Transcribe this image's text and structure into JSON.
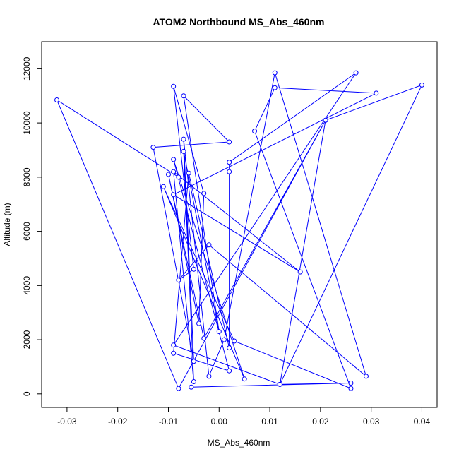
{
  "chart_data": {
    "type": "line",
    "title": "ATOM2 Northbound MS_Abs_460nm",
    "xlabel": "MS_Abs_460nm",
    "ylabel": "Altitude (m)",
    "xlim": [
      -0.035,
      0.043
    ],
    "ylim": [
      -500,
      13000
    ],
    "xticks": [
      -0.03,
      -0.02,
      -0.01,
      0.0,
      0.01,
      0.02,
      0.03,
      0.04
    ],
    "xtick_labels": [
      "-0.03",
      "-0.02",
      "-0.01",
      "0.00",
      "0.01",
      "0.02",
      "0.03",
      "0.04"
    ],
    "yticks": [
      0,
      2000,
      4000,
      6000,
      8000,
      10000,
      12000
    ],
    "ytick_labels": [
      "0",
      "2000",
      "4000",
      "6000",
      "8000",
      "10000",
      "12000"
    ],
    "grid": false,
    "markers": "open-circle",
    "series": [
      {
        "color": "#0000ff",
        "points": [
          [
            -0.0055,
            250
          ],
          [
            0.026,
            400
          ],
          [
            0.012,
            350
          ],
          [
            -0.009,
            1800
          ],
          [
            0.027,
            11850
          ],
          [
            0.002,
            8550
          ],
          [
            0.002,
            8200
          ],
          [
            0.002,
            1700
          ],
          [
            -0.006,
            8150
          ],
          [
            -0.009,
            1500
          ],
          [
            0.002,
            850
          ],
          [
            -0.009,
            8650
          ],
          [
            0.005,
            550
          ],
          [
            -0.011,
            7650
          ],
          [
            0.003,
            1950
          ],
          [
            0.026,
            200
          ],
          [
            0.007,
            9700
          ],
          [
            0.011,
            11300
          ],
          [
            0.031,
            11100
          ],
          [
            -0.009,
            7350
          ],
          [
            0.016,
            4500
          ],
          [
            -0.009,
            8200
          ],
          [
            -0.005,
            450
          ],
          [
            -0.007,
            8950
          ],
          [
            0.0,
            2300
          ],
          [
            -0.007,
            11000
          ],
          [
            0.002,
            9300
          ],
          [
            -0.013,
            9100
          ],
          [
            -0.005,
            1200
          ],
          [
            -0.007,
            9400
          ],
          [
            -0.002,
            650
          ],
          [
            0.001,
            2000
          ],
          [
            0.011,
            11850
          ],
          [
            0.029,
            650
          ],
          [
            -0.002,
            5500
          ],
          [
            -0.008,
            4200
          ],
          [
            -0.005,
            4600
          ],
          [
            -0.009,
            11350
          ],
          [
            -0.003,
            7400
          ],
          [
            -0.004,
            2600
          ],
          [
            -0.01,
            8100
          ],
          [
            -0.003,
            2050
          ],
          [
            0.021,
            10100
          ],
          [
            0.04,
            11400
          ],
          [
            0.012,
            350
          ],
          [
            0.021,
            10100
          ],
          [
            -0.008,
            200
          ],
          [
            -0.032,
            10850
          ],
          [
            -0.008,
            8000
          ]
        ]
      }
    ]
  }
}
